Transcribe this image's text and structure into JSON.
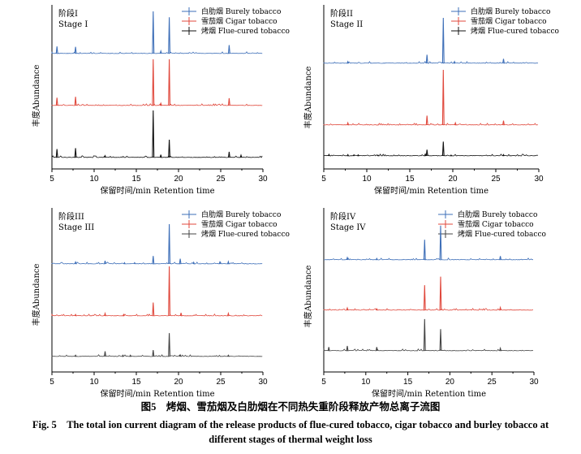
{
  "caption": {
    "cn": "图5　烤烟、雪茄烟及白肋烟在不同热失重阶段释放产物总离子流图",
    "en_line1": "Fig. 5　The total ion current diagram of the release products of flue-cured tobacco, cigar tobacco and burley tobacco at",
    "en_line2": "different stages of thermal weight loss"
  },
  "colors": {
    "burley": "#3e6fb8",
    "cigar": "#e0483c",
    "flue": "#111111"
  },
  "chart_data": [
    {
      "type": "line",
      "stage_cn": "阶段I",
      "stage_en": "Stage I",
      "xlabel": "保留时间/min Retention time",
      "ylabel": "丰度Abundance",
      "xlim": [
        5,
        30
      ],
      "xticks": [
        5,
        10,
        15,
        20,
        25,
        30
      ],
      "series": [
        {
          "name": "白肋烟  Burely tobacco",
          "color": "#3e6fb8",
          "peaks": [
            [
              5.6,
              0.17
            ],
            [
              7.8,
              0.16
            ],
            [
              17.0,
              1.0
            ],
            [
              17.9,
              0.06
            ],
            [
              18.9,
              0.86
            ],
            [
              26.0,
              0.2
            ]
          ]
        },
        {
          "name": "雪茄烟  Cigar tobacco",
          "color": "#e0483c",
          "peaks": [
            [
              5.6,
              0.17
            ],
            [
              7.8,
              0.19
            ],
            [
              17.0,
              1.0
            ],
            [
              17.9,
              0.05
            ],
            [
              18.9,
              1.0
            ],
            [
              26.0,
              0.16
            ]
          ]
        },
        {
          "name": "烤烟  Flue-cured tobacco",
          "color": "#111111",
          "peaks": [
            [
              5.6,
              0.18
            ],
            [
              7.8,
              0.2
            ],
            [
              11.3,
              0.04
            ],
            [
              17.0,
              1.0
            ],
            [
              17.9,
              0.06
            ],
            [
              18.9,
              0.38
            ],
            [
              26.0,
              0.12
            ],
            [
              27.4,
              0.05
            ]
          ]
        }
      ]
    },
    {
      "type": "line",
      "stage_cn": "阶段II",
      "stage_en": "Stage II",
      "xlabel": "保留时间/min Retention time",
      "ylabel": "丰度Abundance",
      "xlim": [
        5,
        30
      ],
      "xticks": [
        5,
        10,
        15,
        20,
        25,
        30
      ],
      "series": [
        {
          "name": "白肋烟  Burely tobacco",
          "color": "#3e6fb8",
          "peaks": [
            [
              7.8,
              0.04
            ],
            [
              17.0,
              0.19
            ],
            [
              18.9,
              1.0
            ],
            [
              20.2,
              0.04
            ],
            [
              25.9,
              0.1
            ]
          ]
        },
        {
          "name": "雪茄烟  Cigar tobacco",
          "color": "#e0483c",
          "peaks": [
            [
              7.8,
              0.04
            ],
            [
              17.0,
              0.17
            ],
            [
              18.9,
              1.0
            ],
            [
              20.3,
              0.04
            ],
            [
              25.9,
              0.08
            ]
          ]
        },
        {
          "name": "烤烟  Flue-cured tobacco",
          "color": "#111111",
          "peaks": [
            [
              5.6,
              0.06
            ],
            [
              7.8,
              0.05
            ],
            [
              8.5,
              0.04
            ],
            [
              9.0,
              0.04
            ],
            [
              11.3,
              0.03
            ],
            [
              16.8,
              0.07
            ],
            [
              17.0,
              0.24
            ],
            [
              18.9,
              0.55
            ],
            [
              19.8,
              0.03
            ],
            [
              25.9,
              0.05
            ]
          ]
        }
      ]
    },
    {
      "type": "line",
      "stage_cn": "阶段III",
      "stage_en": "Stage III",
      "xlabel": "保留时间/min Retention time",
      "ylabel": "丰度Abundance",
      "xlim": [
        5,
        30
      ],
      "xticks": [
        5,
        10,
        15,
        20,
        25,
        30
      ],
      "series": [
        {
          "name": "白肋烟  Burely tobacco",
          "color": "#3e6fb8",
          "peaks": [
            [
              7.8,
              0.05
            ],
            [
              11.3,
              0.08
            ],
            [
              13.6,
              0.03
            ],
            [
              14.8,
              0.03
            ],
            [
              17.0,
              0.2
            ],
            [
              18.9,
              1.0
            ],
            [
              20.2,
              0.13
            ],
            [
              21.8,
              0.04
            ],
            [
              24.9,
              0.05
            ],
            [
              25.9,
              0.06
            ]
          ]
        },
        {
          "name": "雪茄烟  Cigar tobacco",
          "color": "#e0483c",
          "peaks": [
            [
              7.8,
              0.03
            ],
            [
              11.3,
              0.05
            ],
            [
              13.5,
              0.03
            ],
            [
              17.0,
              0.27
            ],
            [
              18.9,
              1.0
            ],
            [
              20.3,
              0.06
            ],
            [
              25.9,
              0.05
            ]
          ]
        },
        {
          "name": "烤烟  Flue-cured tobacco",
          "color": "#444444",
          "peaks": [
            [
              7.8,
              0.04
            ],
            [
              11.3,
              0.16
            ],
            [
              13.4,
              0.04
            ],
            [
              14.3,
              0.04
            ],
            [
              17.0,
              0.2
            ],
            [
              18.9,
              0.72
            ],
            [
              20.2,
              0.05
            ],
            [
              25.9,
              0.04
            ]
          ]
        }
      ]
    },
    {
      "type": "line",
      "stage_cn": "阶段IV",
      "stage_en": "Stage IV",
      "xlabel": "保留时间/min Retention time",
      "ylabel": "丰度Abundance",
      "xlim": [
        5,
        30
      ],
      "xticks": [
        5,
        10,
        15,
        20,
        25,
        30
      ],
      "series": [
        {
          "name": "白肋烟  Burely tobacco",
          "color": "#3e6fb8",
          "peaks": [
            [
              7.8,
              0.06
            ],
            [
              11.3,
              0.04
            ],
            [
              17.0,
              0.54
            ],
            [
              18.9,
              0.92
            ],
            [
              26.0,
              0.1
            ]
          ]
        },
        {
          "name": "雪茄烟  Cigar tobacco",
          "color": "#e0483c",
          "peaks": [
            [
              7.8,
              0.05
            ],
            [
              11.3,
              0.03
            ],
            [
              17.0,
              0.55
            ],
            [
              18.9,
              0.74
            ],
            [
              26.0,
              0.06
            ]
          ]
        },
        {
          "name": "烤烟  Flue-cured tobacco",
          "color": "#444444",
          "peaks": [
            [
              5.6,
              0.1
            ],
            [
              7.8,
              0.13
            ],
            [
              11.3,
              0.1
            ],
            [
              17.0,
              0.85
            ],
            [
              18.9,
              0.58
            ],
            [
              26.0,
              0.07
            ]
          ]
        }
      ]
    }
  ]
}
